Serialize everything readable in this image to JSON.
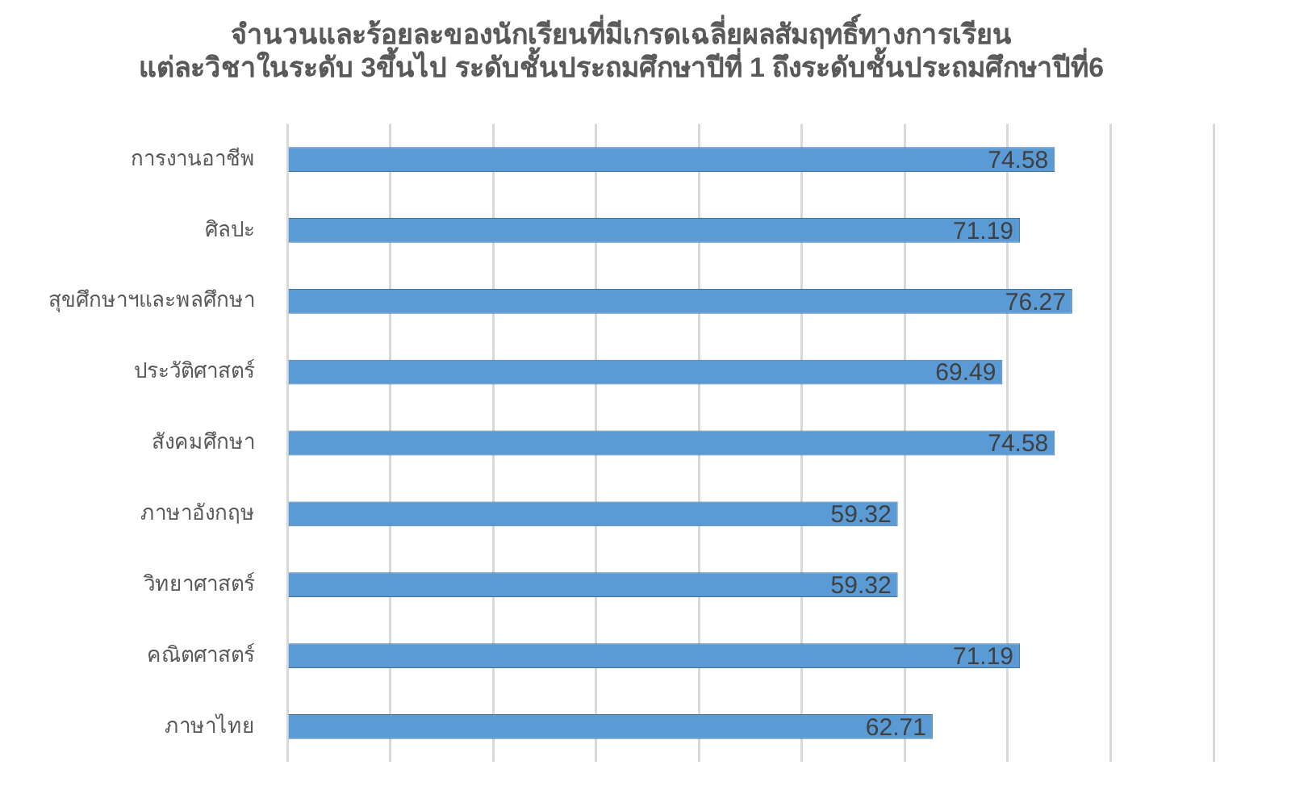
{
  "chart_data": {
    "type": "bar",
    "orientation": "horizontal",
    "title": [
      "จำนวนและร้อยละของนักเรียนที่มีเกรดเฉลี่ยผลสัมฤทธิ์ทางการเรียน",
      "แต่ละวิชาในระดับ 3ขึ้นไป ระดับชั้นประถมศึกษาปีที่ 1 ถึงระดับชั้นประถมศึกษาปีที่6"
    ],
    "categories": [
      "การงานอาชีพ",
      "ศิลปะ",
      "สุขศึกษาฯและพลศึกษา",
      "ประวัติศาสตร์",
      "สังคมศึกษา",
      "ภาษาอังกฤษ",
      "วิทยาศาสตร์",
      "คณิตศาสตร์",
      "ภาษาไทย"
    ],
    "values": [
      74.58,
      71.19,
      76.27,
      69.49,
      74.58,
      59.32,
      59.32,
      71.19,
      62.71
    ],
    "color": "#5b9bd5",
    "data_labels": true,
    "grid": "x",
    "tick_labels": "y",
    "legend": false,
    "xlim": [
      0,
      90
    ],
    "xticks": [
      {
        "value": 0,
        "label": null
      },
      {
        "value": 10,
        "label": null
      },
      {
        "value": 20,
        "label": null
      },
      {
        "value": 30,
        "label": null
      },
      {
        "value": 40,
        "label": null
      },
      {
        "value": 50,
        "label": null
      },
      {
        "value": 60,
        "label": null
      },
      {
        "value": 70,
        "label": null
      },
      {
        "value": 80,
        "label": null
      },
      {
        "value": 90,
        "label": null
      }
    ]
  }
}
